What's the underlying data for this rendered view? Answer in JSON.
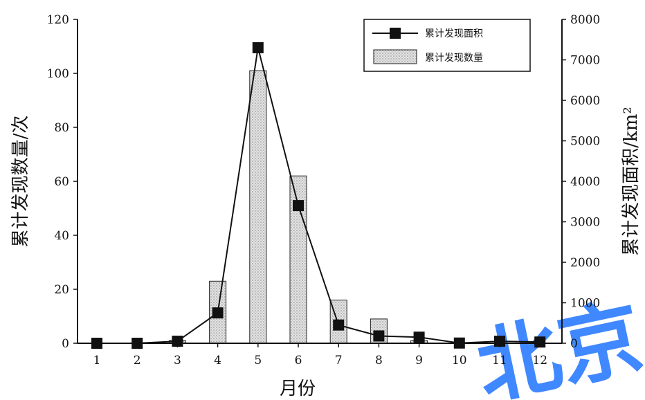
{
  "chart_data": {
    "type": "bar",
    "categories": [
      "1",
      "2",
      "3",
      "4",
      "5",
      "6",
      "7",
      "8",
      "9",
      "10",
      "11",
      "12"
    ],
    "bar_series": {
      "name": "累计发现数量",
      "values": [
        0,
        0,
        1,
        23,
        101,
        62,
        16,
        9,
        1,
        0,
        0,
        0
      ]
    },
    "line_series": {
      "name": "累计发现面积",
      "values": [
        0,
        0,
        50,
        750,
        7300,
        3400,
        450,
        180,
        150,
        5,
        50,
        30
      ]
    },
    "xlabel": "月份",
    "ylabel_left": "累计发现数量/次",
    "ylabel_right": "累计发现面积/km²",
    "ylim_left": [
      0,
      120
    ],
    "ylim_right": [
      0,
      8000
    ],
    "yticks_left": [
      "0",
      "20",
      "40",
      "60",
      "80",
      "100",
      "120"
    ],
    "yticks_right": [
      "0",
      "1000",
      "2000",
      "3000",
      "4000",
      "5000",
      "6000",
      "7000",
      "8000"
    ],
    "grid": false,
    "legend_position": "top-right",
    "colors": {
      "line": "#111111",
      "bar_fill": "#cccccc",
      "bar_stroke": "#222222",
      "watermark": "#1f74ff"
    }
  },
  "watermark_text": "北京"
}
